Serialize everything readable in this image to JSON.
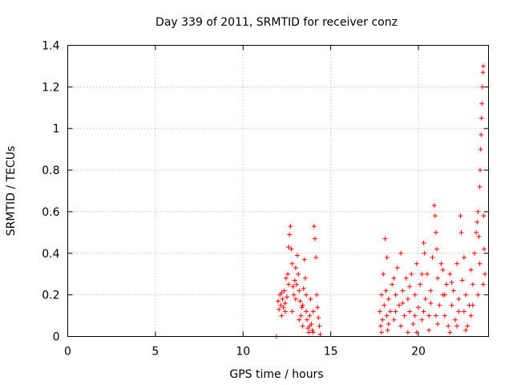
{
  "chart_data": {
    "type": "scatter",
    "title": "Day 339 of 2011, SRMTID for receiver conz",
    "xlabel": "GPS time / hours",
    "ylabel": "SRMTID / TECUs",
    "xlim": [
      0,
      24
    ],
    "ylim": [
      0,
      1.4
    ],
    "xticks": [
      0,
      5,
      10,
      15,
      20
    ],
    "xtick_labels": [
      "0",
      "5",
      "10",
      "15",
      "20"
    ],
    "yticks": [
      0,
      0.2,
      0.4,
      0.6,
      0.8,
      1,
      1.2,
      1.4
    ],
    "ytick_labels": [
      "0",
      "0.2",
      "0.4",
      "0.6",
      "0.8",
      "1",
      "1.2",
      "1.4"
    ],
    "grid": true,
    "marker": "plus",
    "color": "#ff0000",
    "series": [
      {
        "name": "SRMTID",
        "points": [
          [
            11.9,
            0.0
          ],
          [
            12.0,
            0.17
          ],
          [
            12.05,
            0.13
          ],
          [
            12.1,
            0.2
          ],
          [
            12.15,
            0.15
          ],
          [
            12.2,
            0.1
          ],
          [
            12.25,
            0.18
          ],
          [
            12.3,
            0.14
          ],
          [
            12.35,
            0.22
          ],
          [
            12.4,
            0.16
          ],
          [
            12.45,
            0.28
          ],
          [
            12.5,
            0.19
          ],
          [
            12.55,
            0.3
          ],
          [
            12.6,
            0.43
          ],
          [
            12.65,
            0.49
          ],
          [
            12.7,
            0.53
          ],
          [
            12.75,
            0.42
          ],
          [
            12.8,
            0.35
          ],
          [
            12.85,
            0.24
          ],
          [
            12.9,
            0.2
          ],
          [
            12.95,
            0.27
          ],
          [
            13.0,
            0.33
          ],
          [
            13.05,
            0.25
          ],
          [
            13.1,
            0.39
          ],
          [
            13.15,
            0.3
          ],
          [
            13.2,
            0.22
          ],
          [
            13.25,
            0.17
          ],
          [
            13.3,
            0.1
          ],
          [
            13.35,
            0.14
          ],
          [
            13.4,
            0.05
          ],
          [
            13.45,
            0.23
          ],
          [
            13.5,
            0.37
          ],
          [
            13.55,
            0.28
          ],
          [
            13.6,
            0.12
          ],
          [
            13.65,
            0.08
          ],
          [
            13.7,
            0.04
          ],
          [
            13.75,
            0.02
          ],
          [
            13.8,
            0.1
          ],
          [
            13.85,
            0.18
          ],
          [
            13.9,
            0.06
          ],
          [
            13.95,
            0.03
          ],
          [
            14.0,
            0.12
          ],
          [
            14.05,
            0.53
          ],
          [
            14.1,
            0.47
          ],
          [
            14.15,
            0.38
          ],
          [
            14.2,
            0.2
          ],
          [
            14.25,
            0.14
          ],
          [
            14.3,
            0.09
          ],
          [
            14.35,
            0.05
          ],
          [
            14.4,
            0.01
          ],
          [
            12.2,
            0.21
          ],
          [
            12.4,
            0.12
          ],
          [
            12.6,
            0.25
          ],
          [
            12.8,
            0.12
          ],
          [
            13.0,
            0.18
          ],
          [
            13.2,
            0.08
          ],
          [
            13.4,
            0.15
          ],
          [
            13.6,
            0.2
          ],
          [
            13.8,
            0.05
          ],
          [
            14.0,
            0.02
          ],
          [
            17.8,
            0.12
          ],
          [
            17.85,
            0.05
          ],
          [
            17.9,
            0.2
          ],
          [
            17.95,
            0.08
          ],
          [
            18.0,
            0.3
          ],
          [
            18.05,
            0.15
          ],
          [
            18.1,
            0.47
          ],
          [
            18.15,
            0.22
          ],
          [
            18.2,
            0.1
          ],
          [
            18.25,
            0.03
          ],
          [
            18.3,
            0.18
          ],
          [
            18.4,
            0.12
          ],
          [
            18.5,
            0.25
          ],
          [
            18.6,
            0.08
          ],
          [
            18.7,
            0.2
          ],
          [
            18.8,
            0.33
          ],
          [
            18.9,
            0.15
          ],
          [
            19.0,
            0.05
          ],
          [
            19.1,
            0.22
          ],
          [
            19.2,
            0.1
          ],
          [
            19.3,
            0.28
          ],
          [
            19.4,
            0.18
          ],
          [
            19.5,
            0.12
          ],
          [
            19.6,
            0.3
          ],
          [
            19.7,
            0.06
          ],
          [
            19.8,
            0.2
          ],
          [
            19.9,
            0.35
          ],
          [
            20.0,
            0.14
          ],
          [
            20.1,
            0.25
          ],
          [
            20.2,
            0.08
          ],
          [
            20.3,
            0.45
          ],
          [
            20.35,
            0.4
          ],
          [
            20.4,
            0.18
          ],
          [
            20.5,
            0.3
          ],
          [
            20.6,
            0.1
          ],
          [
            20.7,
            0.22
          ],
          [
            20.8,
            0.38
          ],
          [
            20.9,
            0.63
          ],
          [
            20.95,
            0.58
          ],
          [
            21.0,
            0.5
          ],
          [
            21.05,
            0.42
          ],
          [
            21.1,
            0.28
          ],
          [
            21.2,
            0.15
          ],
          [
            21.3,
            0.35
          ],
          [
            21.4,
            0.2
          ],
          [
            21.5,
            0.1
          ],
          [
            21.6,
            0.25
          ],
          [
            21.7,
            0.05
          ],
          [
            21.8,
            0.3
          ],
          [
            21.9,
            0.15
          ],
          [
            22.0,
            0.22
          ],
          [
            22.1,
            0.08
          ],
          [
            22.2,
            0.35
          ],
          [
            22.3,
            0.18
          ],
          [
            22.4,
            0.58
          ],
          [
            22.45,
            0.5
          ],
          [
            22.5,
            0.27
          ],
          [
            22.6,
            0.12
          ],
          [
            22.7,
            0.2
          ],
          [
            22.8,
            0.05
          ],
          [
            22.9,
            0.15
          ],
          [
            23.0,
            0.32
          ],
          [
            23.1,
            0.25
          ],
          [
            23.2,
            0.4
          ],
          [
            23.3,
            0.5
          ],
          [
            23.35,
            0.55
          ],
          [
            23.4,
            0.6
          ],
          [
            23.45,
            0.48
          ],
          [
            23.5,
            0.72
          ],
          [
            23.52,
            0.8
          ],
          [
            23.55,
            0.9
          ],
          [
            23.58,
            0.97
          ],
          [
            23.6,
            1.05
          ],
          [
            23.62,
            1.12
          ],
          [
            23.65,
            1.2
          ],
          [
            23.68,
            1.27
          ],
          [
            23.7,
            1.3
          ],
          [
            23.72,
            0.58
          ],
          [
            23.75,
            0.42
          ],
          [
            23.8,
            0.3
          ],
          [
            18.2,
            0.38
          ],
          [
            18.6,
            0.28
          ],
          [
            19.0,
            0.4
          ],
          [
            19.4,
            0.02
          ],
          [
            19.8,
            0.1
          ],
          [
            20.2,
            0.3
          ],
          [
            20.6,
            0.03
          ],
          [
            21.0,
            0.1
          ],
          [
            21.4,
            0.32
          ],
          [
            21.8,
            0.02
          ],
          [
            22.2,
            0.05
          ],
          [
            22.6,
            0.38
          ],
          [
            23.0,
            0.1
          ],
          [
            23.4,
            0.2
          ],
          [
            17.9,
            0.02
          ],
          [
            18.3,
            0.06
          ],
          [
            18.7,
            0.12
          ],
          [
            19.1,
            0.16
          ],
          [
            19.5,
            0.24
          ],
          [
            19.9,
            0.02
          ],
          [
            20.3,
            0.12
          ],
          [
            20.7,
            0.16
          ],
          [
            21.1,
            0.06
          ],
          [
            21.5,
            0.2
          ],
          [
            21.9,
            0.26
          ],
          [
            22.3,
            0.12
          ],
          [
            22.7,
            0.03
          ],
          [
            23.1,
            0.15
          ],
          [
            23.5,
            0.35
          ],
          [
            23.7,
            0.25
          ]
        ]
      }
    ]
  }
}
